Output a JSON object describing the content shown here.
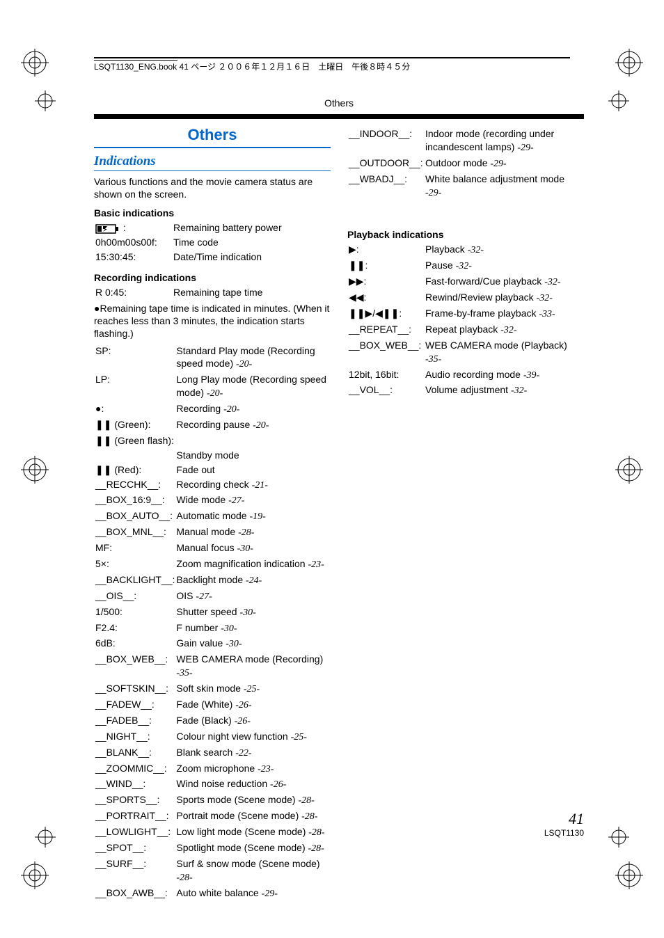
{
  "header": {
    "bookline": "LSQT1130_ENG.book  41 ページ  ２００６年１２月１６日　土曜日　午後８時４５分"
  },
  "section_label": "Others",
  "title": "Others",
  "subtitle": "Indications",
  "intro": "Various functions and the movie camera status are shown on the screen.",
  "basic": {
    "heading": "Basic indications",
    "rows": [
      {
        "sym": "__BATTERY__",
        "desc": "Remaining battery power"
      },
      {
        "sym": "0h00m00s00f:",
        "desc": "Time code"
      },
      {
        "sym": "15:30:45:",
        "desc": "Date/Time indication"
      }
    ]
  },
  "recording": {
    "heading": "Recording indications",
    "first": {
      "sym": "R 0:45:",
      "desc": "Remaining tape time"
    },
    "note_bullet": "●Remaining tape time is indicated in minutes. (When it reaches less than 3 minutes, the indication starts flashing.)",
    "rows": [
      {
        "sym": "SP:",
        "desc": "Standard Play mode (Recording speed mode) ",
        "ref": "-20-"
      },
      {
        "sym": "LP:",
        "desc": "Long Play mode (Recording speed mode) ",
        "ref": "-20-"
      },
      {
        "sym": "●:",
        "desc": "Recording ",
        "ref": "-20-"
      },
      {
        "sym": "❚❚ (Green):",
        "desc": "Recording pause ",
        "ref": "-20-"
      },
      {
        "sym": "❚❚ (Green flash):",
        "desc": "",
        "ref": ""
      },
      {
        "sym": "",
        "desc": "Standby mode",
        "ref": ""
      },
      {
        "sym": "❚❚ (Red):",
        "desc": "Fade out",
        "ref": ""
      },
      {
        "sym": "__RECCHK__:",
        "desc": "Recording check ",
        "ref": "-21-"
      },
      {
        "sym": "__BOX_16:9__:",
        "desc": "Wide mode ",
        "ref": "-27-"
      },
      {
        "sym": "__BOX_AUTO__:",
        "desc": "Automatic mode ",
        "ref": "-19-"
      },
      {
        "sym": "__BOX_MNL__:",
        "desc": "Manual mode ",
        "ref": "-28-"
      },
      {
        "sym": "MF:",
        "desc": "Manual focus ",
        "ref": "-30-"
      },
      {
        "sym": "5×:",
        "desc": "Zoom magnification indication ",
        "ref": "-23-"
      },
      {
        "sym": "__BACKLIGHT__:",
        "desc": "Backlight mode ",
        "ref": "-24-"
      },
      {
        "sym": "__OIS__:",
        "desc": "OIS ",
        "ref": "-27-"
      },
      {
        "sym": "1/500:",
        "desc": "Shutter speed ",
        "ref": "-30-"
      },
      {
        "sym": "F2.4:",
        "desc": "F number ",
        "ref": "-30-"
      },
      {
        "sym": "6dB:",
        "desc": "Gain value ",
        "ref": "-30-"
      },
      {
        "sym": "__BOX_WEB__:",
        "desc": "WEB CAMERA mode (Recording) ",
        "ref": "-35-"
      },
      {
        "sym": "__SOFTSKIN__:",
        "desc": "Soft skin mode ",
        "ref": "-25-"
      },
      {
        "sym": "__FADEW__:",
        "desc": "Fade (White) ",
        "ref": "-26-"
      },
      {
        "sym": "__FADEB__:",
        "desc": "Fade (Black) ",
        "ref": "-26-"
      },
      {
        "sym": "__NIGHT__:",
        "desc": "Colour night view function ",
        "ref": "-25-"
      },
      {
        "sym": "__BLANK__:",
        "desc": "Blank search ",
        "ref": "-22-"
      },
      {
        "sym": "__ZOOMMIC__:",
        "desc": "Zoom microphone ",
        "ref": "-23-"
      },
      {
        "sym": "__WIND__:",
        "desc": "Wind noise reduction ",
        "ref": "-26-"
      },
      {
        "sym": "__SPORTS__:",
        "desc": "Sports mode (Scene mode) ",
        "ref": "-28-"
      },
      {
        "sym": "__PORTRAIT__:",
        "desc": "Portrait mode (Scene mode) ",
        "ref": "-28-"
      },
      {
        "sym": "__LOWLIGHT__:",
        "desc": "Low light mode (Scene mode) ",
        "ref": "-28-"
      },
      {
        "sym": "__SPOT__:",
        "desc": "Spotlight mode (Scene mode) ",
        "ref": "-28-"
      },
      {
        "sym": "__SURF__:",
        "desc": "Surf & snow mode (Scene mode) ",
        "ref": "-28-"
      },
      {
        "sym": "__BOX_AWB__:",
        "desc": "Auto white balance ",
        "ref": "-29-"
      }
    ]
  },
  "recording_right": {
    "rows": [
      {
        "sym": "__INDOOR__:",
        "desc": "Indoor mode (recording under incandescent lamps) ",
        "ref": "-29-"
      },
      {
        "sym": "__OUTDOOR__:",
        "desc": "Outdoor mode ",
        "ref": "-29-"
      },
      {
        "sym": "__WBADJ__:",
        "desc": "White balance adjustment mode ",
        "ref": "-29-"
      }
    ]
  },
  "playback": {
    "heading": "Playback indications",
    "rows": [
      {
        "sym": "▶:",
        "desc": "Playback ",
        "ref": "-32-"
      },
      {
        "sym": "❚❚:",
        "desc": "Pause ",
        "ref": "-32-"
      },
      {
        "sym": "▶▶:",
        "desc": "Fast-forward/Cue playback ",
        "ref": "-32-"
      },
      {
        "sym": "◀◀:",
        "desc": "Rewind/Review playback ",
        "ref": "-32-"
      },
      {
        "sym": "❚❚▶/◀❚❚:",
        "desc": "Frame-by-frame playback ",
        "ref": "-33-"
      },
      {
        "sym": "__REPEAT__:",
        "desc": "Repeat playback ",
        "ref": "-32-"
      },
      {
        "sym": "__BOX_WEB__:",
        "desc": "WEB CAMERA mode (Playback) ",
        "ref": "-35-"
      },
      {
        "sym": "12bit, 16bit:",
        "desc": "Audio recording mode ",
        "ref": "-39-"
      },
      {
        "sym": "__VOL__:",
        "desc": "Volume adjustment ",
        "ref": "-32-"
      }
    ]
  },
  "footer": {
    "page": "41",
    "code": "LSQT1130"
  }
}
